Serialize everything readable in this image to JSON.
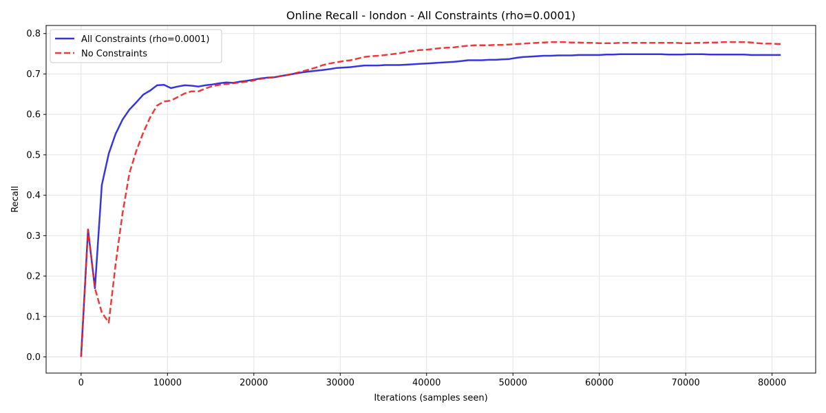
{
  "chart_data": {
    "type": "line",
    "title": "Online Recall - london - All Constraints (rho=0.0001)",
    "xlabel": "Iterations (samples seen)",
    "ylabel": "Recall",
    "xlim": [
      -4050,
      85050
    ],
    "ylim": [
      -0.04,
      0.82
    ],
    "xticks": [
      0,
      10000,
      20000,
      30000,
      40000,
      50000,
      60000,
      70000,
      80000
    ],
    "xtick_labels": [
      "0",
      "10000",
      "20000",
      "30000",
      "40000",
      "50000",
      "60000",
      "70000",
      "80000"
    ],
    "yticks": [
      0.0,
      0.1,
      0.2,
      0.3,
      0.4,
      0.5,
      0.6,
      0.7,
      0.8
    ],
    "ytick_labels": [
      "0.0",
      "0.1",
      "0.2",
      "0.3",
      "0.4",
      "0.5",
      "0.6",
      "0.7",
      "0.8"
    ],
    "grid": true,
    "legend_position": "top-left",
    "series": [
      {
        "name": "All Constraints (rho=0.0001)",
        "color": "#1f1fdd",
        "style": "solid",
        "x": [
          0,
          800,
          1600,
          2400,
          3200,
          4000,
          4800,
          5600,
          6400,
          7200,
          8000,
          8800,
          9600,
          10400,
          11200,
          12000,
          12800,
          13600,
          14400,
          15200,
          16000,
          16800,
          17600,
          18400,
          19200,
          20000,
          20800,
          21600,
          22400,
          23200,
          24000,
          24800,
          25600,
          26400,
          27200,
          28000,
          28800,
          29600,
          30400,
          31200,
          32000,
          32800,
          33600,
          34400,
          35200,
          36000,
          36800,
          37600,
          38400,
          39200,
          40000,
          40800,
          41600,
          42400,
          43200,
          44000,
          44800,
          45600,
          46400,
          47200,
          48000,
          48800,
          49600,
          50400,
          51200,
          52000,
          52800,
          53600,
          54400,
          55200,
          56000,
          56800,
          57600,
          58400,
          59200,
          60000,
          60800,
          61600,
          62400,
          63200,
          64000,
          64800,
          65600,
          66400,
          67200,
          68000,
          68800,
          69600,
          70400,
          71200,
          72000,
          72800,
          73600,
          74400,
          75200,
          76000,
          76800,
          77600,
          78400,
          79200,
          80000,
          81000
        ],
        "y": [
          0.0,
          0.315,
          0.17,
          0.425,
          0.503,
          0.552,
          0.587,
          0.612,
          0.63,
          0.649,
          0.659,
          0.672,
          0.673,
          0.665,
          0.669,
          0.672,
          0.671,
          0.669,
          0.672,
          0.674,
          0.677,
          0.679,
          0.678,
          0.681,
          0.683,
          0.686,
          0.689,
          0.691,
          0.692,
          0.695,
          0.698,
          0.701,
          0.704,
          0.706,
          0.708,
          0.71,
          0.712,
          0.715,
          0.716,
          0.717,
          0.719,
          0.721,
          0.721,
          0.721,
          0.722,
          0.722,
          0.722,
          0.723,
          0.724,
          0.725,
          0.726,
          0.727,
          0.728,
          0.729,
          0.73,
          0.732,
          0.734,
          0.734,
          0.734,
          0.735,
          0.735,
          0.736,
          0.737,
          0.74,
          0.742,
          0.743,
          0.744,
          0.745,
          0.745,
          0.746,
          0.746,
          0.746,
          0.747,
          0.747,
          0.747,
          0.747,
          0.748,
          0.748,
          0.749,
          0.749,
          0.749,
          0.749,
          0.749,
          0.749,
          0.749,
          0.748,
          0.748,
          0.748,
          0.749,
          0.749,
          0.749,
          0.748,
          0.748,
          0.748,
          0.748,
          0.748,
          0.748,
          0.747,
          0.747,
          0.747,
          0.747,
          0.747
        ]
      },
      {
        "name": "No Constraints",
        "color": "#ee2222",
        "style": "dashed",
        "x": [
          0,
          800,
          1600,
          2400,
          3200,
          4000,
          4800,
          5600,
          6400,
          7200,
          8000,
          8800,
          9600,
          10400,
          11200,
          12000,
          12800,
          13600,
          14400,
          15200,
          16000,
          16800,
          17600,
          18400,
          19200,
          20000,
          20800,
          21600,
          22400,
          23200,
          24000,
          24800,
          25600,
          26400,
          27200,
          28000,
          28800,
          29600,
          30400,
          31200,
          32000,
          32800,
          33600,
          34400,
          35200,
          36000,
          36800,
          37600,
          38400,
          39200,
          40000,
          40800,
          41600,
          42400,
          43200,
          44000,
          44800,
          45600,
          46400,
          47200,
          48000,
          48800,
          49600,
          50400,
          51200,
          52000,
          52800,
          53600,
          54400,
          55200,
          56000,
          56800,
          57600,
          58400,
          59200,
          60000,
          60800,
          61600,
          62400,
          63200,
          64000,
          64800,
          65600,
          66400,
          67200,
          68000,
          68800,
          69600,
          70400,
          71200,
          72000,
          72800,
          73600,
          74400,
          75200,
          76000,
          76800,
          77600,
          78400,
          79200,
          80000,
          81000
        ],
        "y": [
          0.0,
          0.315,
          0.17,
          0.11,
          0.085,
          0.23,
          0.355,
          0.455,
          0.51,
          0.555,
          0.593,
          0.622,
          0.632,
          0.634,
          0.643,
          0.652,
          0.657,
          0.657,
          0.664,
          0.67,
          0.673,
          0.675,
          0.677,
          0.679,
          0.681,
          0.684,
          0.688,
          0.69,
          0.692,
          0.695,
          0.698,
          0.702,
          0.706,
          0.711,
          0.716,
          0.722,
          0.726,
          0.729,
          0.732,
          0.734,
          0.738,
          0.742,
          0.744,
          0.745,
          0.747,
          0.749,
          0.751,
          0.754,
          0.757,
          0.759,
          0.76,
          0.762,
          0.764,
          0.765,
          0.766,
          0.768,
          0.77,
          0.771,
          0.771,
          0.771,
          0.772,
          0.772,
          0.773,
          0.774,
          0.775,
          0.776,
          0.777,
          0.778,
          0.779,
          0.779,
          0.779,
          0.778,
          0.778,
          0.777,
          0.777,
          0.776,
          0.776,
          0.776,
          0.777,
          0.777,
          0.777,
          0.777,
          0.777,
          0.777,
          0.777,
          0.777,
          0.777,
          0.776,
          0.776,
          0.777,
          0.777,
          0.778,
          0.778,
          0.779,
          0.779,
          0.779,
          0.779,
          0.778,
          0.776,
          0.775,
          0.775,
          0.774
        ]
      }
    ]
  }
}
